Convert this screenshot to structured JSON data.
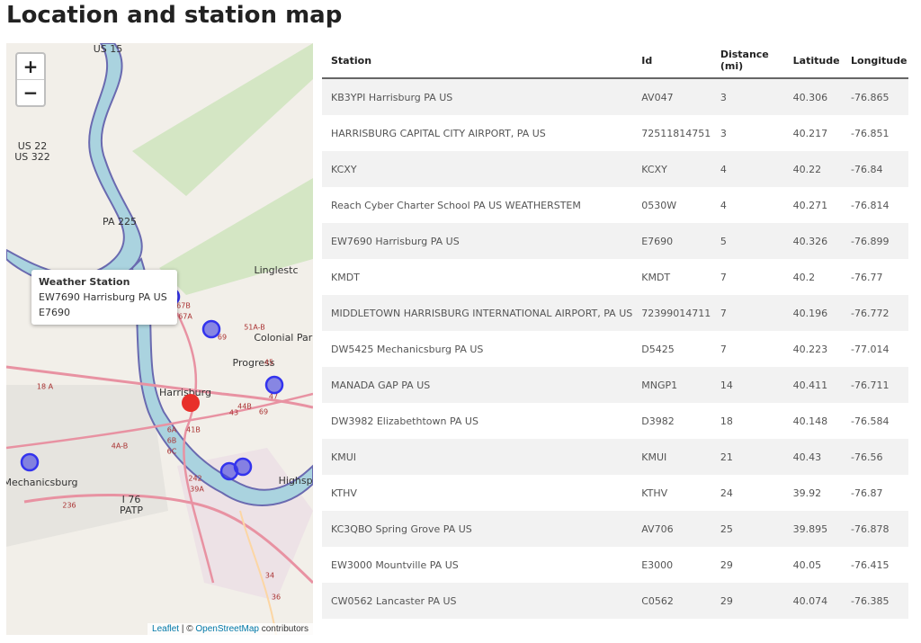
{
  "header": {
    "title": "Location and station map"
  },
  "map": {
    "zoom_in": "+",
    "zoom_out": "−",
    "attribution": {
      "leaflet": "Leaflet",
      "separator": "| ©",
      "osm": "OpenStreetMap",
      "suffix": "contributors"
    },
    "popup": {
      "title": "Weather Station",
      "name": "EW7690 Harrisburg PA US",
      "id": "E7690"
    },
    "labels": [
      "US 15",
      "US 22",
      "US 322",
      "PA 225",
      "Linglestc",
      "Colonial Park",
      "Progress",
      "Harrisburg",
      "Mechanicsburg",
      "I 76",
      "PATP",
      "Highspo",
      "67B",
      "67A",
      "69",
      "51A-B",
      "45",
      "43",
      "41B",
      "6A",
      "6B",
      "6C",
      "242",
      "39A",
      "236",
      "34",
      "36",
      "47",
      "18 A",
      "4A-B",
      "44B",
      "69"
    ]
  },
  "table": {
    "headers": [
      "Station",
      "Id",
      "Distance (mi)",
      "Latitude",
      "Longitude"
    ],
    "rows": [
      [
        "KB3YPI Harrisburg PA US",
        "AV047",
        "3",
        "40.306",
        "-76.865"
      ],
      [
        "HARRISBURG CAPITAL CITY AIRPORT, PA US",
        "72511814751",
        "3",
        "40.217",
        "-76.851"
      ],
      [
        "KCXY",
        "KCXY",
        "4",
        "40.22",
        "-76.84"
      ],
      [
        "Reach Cyber Charter School PA US WEATHERSTEM",
        "0530W",
        "4",
        "40.271",
        "-76.814"
      ],
      [
        "EW7690 Harrisburg PA US",
        "E7690",
        "5",
        "40.326",
        "-76.899"
      ],
      [
        "KMDT",
        "KMDT",
        "7",
        "40.2",
        "-76.77"
      ],
      [
        "MIDDLETOWN HARRISBURG INTERNATIONAL AIRPORT, PA US",
        "72399014711",
        "7",
        "40.196",
        "-76.772"
      ],
      [
        "DW5425 Mechanicsburg PA US",
        "D5425",
        "7",
        "40.223",
        "-77.014"
      ],
      [
        "MANADA GAP PA US",
        "MNGP1",
        "14",
        "40.411",
        "-76.711"
      ],
      [
        "DW3982 Elizabethtown PA US",
        "D3982",
        "18",
        "40.148",
        "-76.584"
      ],
      [
        "KMUI",
        "KMUI",
        "21",
        "40.43",
        "-76.56"
      ],
      [
        "KTHV",
        "KTHV",
        "24",
        "39.92",
        "-76.87"
      ],
      [
        "KC3QBO Spring Grove PA US",
        "AV706",
        "25",
        "39.895",
        "-76.878"
      ],
      [
        "EW3000 Mountville PA US",
        "E3000",
        "29",
        "40.05",
        "-76.415"
      ],
      [
        "CW0562 Lancaster PA US",
        "C0562",
        "29",
        "40.074",
        "-76.385"
      ]
    ]
  }
}
